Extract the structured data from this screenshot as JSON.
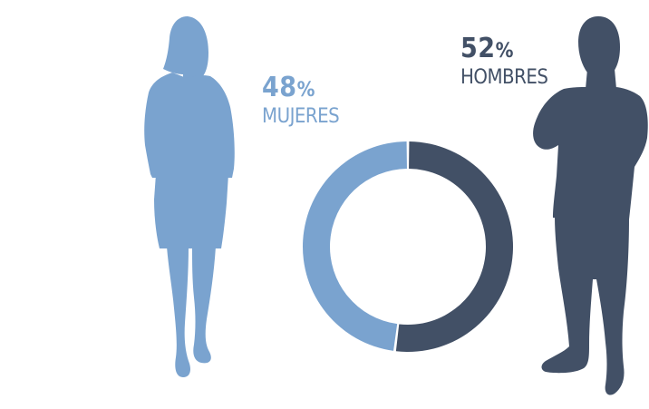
{
  "colors": {
    "women": "#7aa3cf",
    "men": "#425066",
    "background": "#ffffff"
  },
  "icons": {
    "women": "woman-silhouette-icon",
    "men": "man-silhouette-icon"
  },
  "chart_data": {
    "type": "pie",
    "variant": "donut",
    "title": "",
    "slices": [
      {
        "label": "MUJERES",
        "value": 48,
        "value_label": "48%",
        "color": "#7aa3cf"
      },
      {
        "label": "HOMBRES",
        "value": 52,
        "value_label": "52%",
        "color": "#425066"
      }
    ]
  }
}
